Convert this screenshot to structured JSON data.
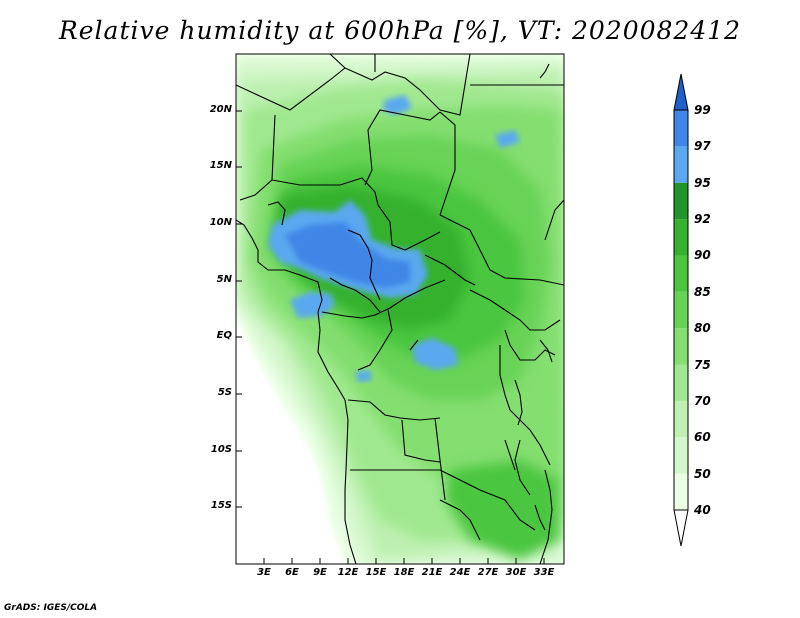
{
  "title": "Relative humidity at 600hPa [%], VT: 2020082412",
  "credit": "GrADS: IGES/COLA",
  "map": {
    "variable": "Relative humidity",
    "level": "600hPa",
    "units": "%",
    "valid_time": "2020082412",
    "lon_range": [
      0,
      35
    ],
    "lat_range": [
      -20,
      25
    ],
    "lat_ticks": [
      "20N",
      "15N",
      "10N",
      "5N",
      "EQ",
      "5S",
      "10S",
      "15S"
    ],
    "lon_ticks": [
      "3E",
      "6E",
      "9E",
      "12E",
      "15E",
      "18E",
      "21E",
      "24E",
      "27E",
      "30E",
      "33E"
    ]
  },
  "colorbar": {
    "levels": [
      "40",
      "50",
      "60",
      "70",
      "75",
      "80",
      "85",
      "90",
      "92",
      "95",
      "97",
      "99"
    ],
    "colors": [
      "#ebffe6",
      "#d4f7cc",
      "#bdf0b1",
      "#a0e88f",
      "#84de70",
      "#67d356",
      "#4cc63f",
      "#36b12d",
      "#22952a",
      "#5aa8f0",
      "#3f86e6",
      "#1f5fc8"
    ],
    "below_color": "#ffffff",
    "above_color": "#1f5fc8"
  }
}
